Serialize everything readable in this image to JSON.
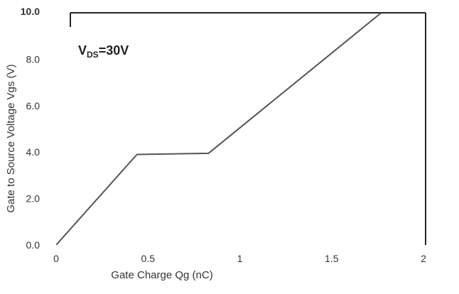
{
  "chart_data": {
    "type": "line",
    "title": "",
    "xlabel": "Gate Charge Qg (nC)",
    "ylabel": "Gate to Source Voltage Vgs (V)",
    "xlim": [
      0,
      2
    ],
    "ylim": [
      0,
      10
    ],
    "x_ticks": [
      "0",
      "0.5",
      "1",
      "1.5",
      "2"
    ],
    "y_ticks": [
      "0.0",
      "2.0",
      "4.0",
      "6.0",
      "8.0",
      "10.0"
    ],
    "grid": false,
    "annotation": {
      "main": "V",
      "subscript": "DS",
      "suffix": "=30V"
    },
    "series": [
      {
        "x": [
          0,
          0.44,
          0.83,
          1.77
        ],
        "y": [
          0,
          3.9,
          3.95,
          10
        ],
        "color": "#555555"
      }
    ]
  }
}
